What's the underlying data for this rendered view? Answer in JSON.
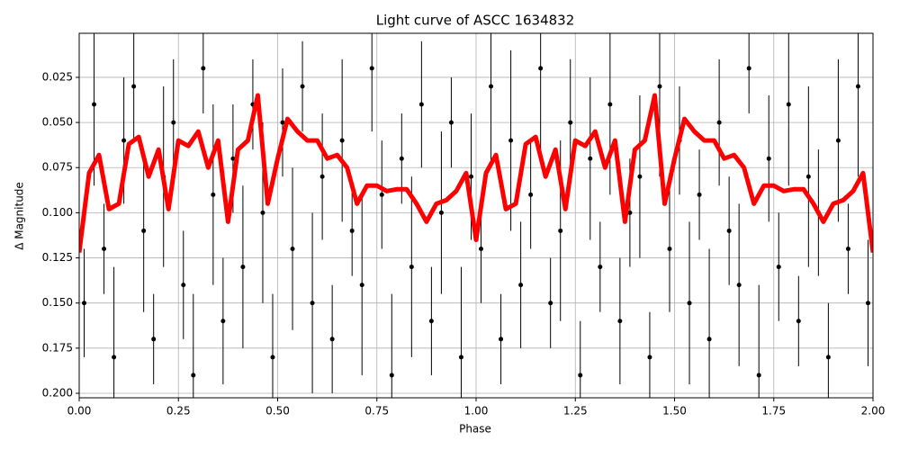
{
  "chart_data": {
    "type": "scatter",
    "title": "Light curve of ASCC 1634832",
    "x_label": "Phase",
    "y_label": "Δ Magnitude",
    "xlim": [
      0,
      2
    ],
    "ylim": [
      0.2025,
      0.0006
    ],
    "xticks": [
      {
        "value": 0,
        "label": "0.00"
      },
      {
        "value": 0.25,
        "label": "0.25"
      },
      {
        "value": 0.5,
        "label": "0.50"
      },
      {
        "value": 0.75,
        "label": "0.75"
      },
      {
        "value": 1,
        "label": "1.00"
      },
      {
        "value": 1.25,
        "label": "1.25"
      },
      {
        "value": 1.5,
        "label": "1.50"
      },
      {
        "value": 1.75,
        "label": "1.75"
      },
      {
        "value": 2,
        "label": "2.00"
      }
    ],
    "yticks": [
      {
        "value": 0.025,
        "label": "0.025"
      },
      {
        "value": 0.05,
        "label": "0.050"
      },
      {
        "value": 0.075,
        "label": "0.075"
      },
      {
        "value": 0.1,
        "label": "0.100"
      },
      {
        "value": 0.125,
        "label": "0.125"
      },
      {
        "value": 0.15,
        "label": "0.150"
      },
      {
        "value": 0.175,
        "label": "0.175"
      },
      {
        "value": 0.2,
        "label": "0.200"
      }
    ],
    "grid": true,
    "points": {
      "color": "#000000",
      "x": [
        0.0125,
        0.0375,
        0.0625,
        0.0875,
        0.1125,
        0.1375,
        0.1625,
        0.1875,
        0.2125,
        0.2375,
        0.2625,
        0.2875,
        0.3125,
        0.3375,
        0.3625,
        0.3875,
        0.4125,
        0.4375,
        0.4625,
        0.4875,
        0.5125,
        0.5375,
        0.5625,
        0.5875,
        0.6125,
        0.6375,
        0.6625,
        0.6875,
        0.7125,
        0.7375,
        0.7625,
        0.7875,
        0.8125,
        0.8375,
        0.8625,
        0.8875,
        0.9125,
        0.9375,
        0.9625,
        0.9875,
        1.0125,
        1.0375,
        1.0625,
        1.0875,
        1.1125,
        1.1375,
        1.1625,
        1.1875,
        1.2125,
        1.2375,
        1.2625,
        1.2875,
        1.3125,
        1.3375,
        1.3625,
        1.3875,
        1.4125,
        1.4375,
        1.4625,
        1.4875,
        1.5125,
        1.5375,
        1.5625,
        1.5875,
        1.6125,
        1.6375,
        1.6625,
        1.6875,
        1.7125,
        1.7375,
        1.7625,
        1.7875,
        1.8125,
        1.8375,
        1.8625,
        1.8875,
        1.9125,
        1.9375,
        1.9625,
        1.9875
      ],
      "y": [
        0.15,
        0.04,
        0.12,
        0.18,
        0.06,
        0.03,
        0.11,
        0.17,
        0.08,
        0.05,
        0.14,
        0.19,
        0.02,
        0.09,
        0.16,
        0.07,
        0.13,
        0.04,
        0.1,
        0.18,
        0.05,
        0.12,
        0.03,
        0.15,
        0.08,
        0.17,
        0.06,
        0.11,
        0.14,
        0.02,
        0.09,
        0.19,
        0.07,
        0.13,
        0.04,
        0.16,
        0.1,
        0.05,
        0.18,
        0.08,
        0.12,
        0.03,
        0.17,
        0.06,
        0.14,
        0.09,
        0.02,
        0.15,
        0.11,
        0.05,
        0.19,
        0.07,
        0.13,
        0.04,
        0.16,
        0.1,
        0.08,
        0.18,
        0.03,
        0.12,
        0.06,
        0.15,
        0.09,
        0.17,
        0.05,
        0.11,
        0.14,
        0.02,
        0.19,
        0.07,
        0.13,
        0.04,
        0.16,
        0.08,
        0.1,
        0.18,
        0.06,
        0.12,
        0.03,
        0.15
      ],
      "err": [
        0.03,
        0.045,
        0.025,
        0.05,
        0.035,
        0.03,
        0.045,
        0.025,
        0.05,
        0.035,
        0.03,
        0.045,
        0.025,
        0.05,
        0.035,
        0.03,
        0.045,
        0.025,
        0.05,
        0.035,
        0.03,
        0.045,
        0.025,
        0.05,
        0.035,
        0.03,
        0.045,
        0.025,
        0.05,
        0.035,
        0.03,
        0.045,
        0.025,
        0.05,
        0.035,
        0.03,
        0.045,
        0.025,
        0.05,
        0.035,
        0.03,
        0.045,
        0.025,
        0.05,
        0.035,
        0.03,
        0.045,
        0.025,
        0.05,
        0.035,
        0.03,
        0.045,
        0.025,
        0.05,
        0.035,
        0.03,
        0.045,
        0.025,
        0.05,
        0.035,
        0.03,
        0.045,
        0.025,
        0.05,
        0.035,
        0.03,
        0.045,
        0.025,
        0.05,
        0.035,
        0.03,
        0.045,
        0.025,
        0.05,
        0.035,
        0.03,
        0.045,
        0.025,
        0.05,
        0.035
      ]
    },
    "line": {
      "color": "#ff0000",
      "x": [
        0,
        0.025,
        0.05,
        0.075,
        0.1,
        0.125,
        0.15,
        0.175,
        0.2,
        0.225,
        0.25,
        0.275,
        0.3,
        0.325,
        0.35,
        0.375,
        0.4,
        0.425,
        0.45,
        0.475,
        0.5,
        0.525,
        0.55,
        0.575,
        0.6,
        0.625,
        0.65,
        0.675,
        0.7,
        0.725,
        0.75,
        0.775,
        0.8,
        0.825,
        0.85,
        0.875,
        0.9,
        0.925,
        0.95,
        0.975,
        1,
        1.025,
        1.05,
        1.075,
        1.1,
        1.125,
        1.15,
        1.175,
        1.2,
        1.225,
        1.25,
        1.275,
        1.3,
        1.325,
        1.35,
        1.375,
        1.4,
        1.425,
        1.45,
        1.475,
        1.5,
        1.525,
        1.55,
        1.575,
        1.6,
        1.625,
        1.65,
        1.675,
        1.7,
        1.725,
        1.75,
        1.775,
        1.8,
        1.825,
        1.85,
        1.875,
        1.9,
        1.925,
        1.95,
        1.975,
        2
      ],
      "y": [
        0.122,
        0.078,
        0.068,
        0.098,
        0.095,
        0.062,
        0.058,
        0.08,
        0.065,
        0.098,
        0.06,
        0.063,
        0.055,
        0.075,
        0.06,
        0.105,
        0.065,
        0.06,
        0.035,
        0.095,
        0.07,
        0.048,
        0.055,
        0.06,
        0.06,
        0.07,
        0.068,
        0.075,
        0.095,
        0.085,
        0.085,
        0.088,
        0.087,
        0.087,
        0.095,
        0.105,
        0.095,
        0.093,
        0.088,
        0.078,
        0.115,
        0.078,
        0.068,
        0.098,
        0.095,
        0.062,
        0.058,
        0.08,
        0.065,
        0.098,
        0.06,
        0.063,
        0.055,
        0.075,
        0.06,
        0.105,
        0.065,
        0.06,
        0.035,
        0.095,
        0.07,
        0.048,
        0.055,
        0.06,
        0.06,
        0.07,
        0.068,
        0.075,
        0.095,
        0.085,
        0.085,
        0.088,
        0.087,
        0.087,
        0.095,
        0.105,
        0.095,
        0.093,
        0.088,
        0.078,
        0.122
      ]
    }
  }
}
